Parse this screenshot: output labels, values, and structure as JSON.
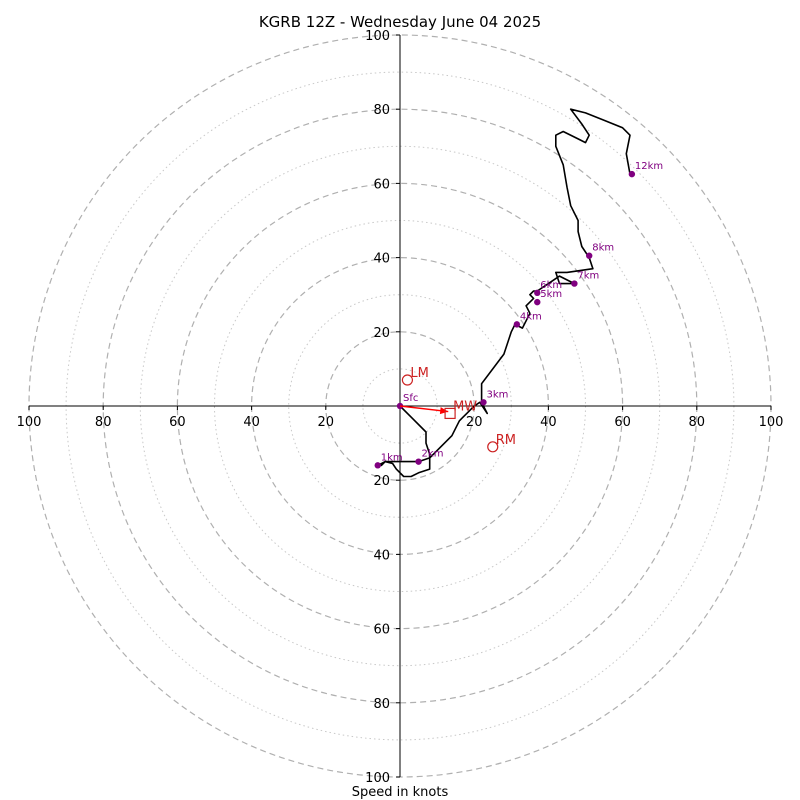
{
  "chart_data": {
    "type": "hodograph",
    "title": "KGRB 12Z - Wednesday June 04 2025",
    "xlabel": "Speed in knots",
    "range": [
      -100,
      100
    ],
    "major_rings": [
      20,
      40,
      60,
      80,
      100
    ],
    "minor_rings": [
      10,
      30,
      50,
      70,
      90
    ],
    "x_ticks": [
      {
        "value": -100,
        "label": "100"
      },
      {
        "value": -80,
        "label": "80"
      },
      {
        "value": -60,
        "label": "60"
      },
      {
        "value": -40,
        "label": "40"
      },
      {
        "value": -20,
        "label": "20"
      },
      {
        "value": 20,
        "label": "20"
      },
      {
        "value": 40,
        "label": "40"
      },
      {
        "value": 60,
        "label": "60"
      },
      {
        "value": 80,
        "label": "80"
      },
      {
        "value": 100,
        "label": "100"
      }
    ],
    "y_ticks": [
      {
        "value": 100,
        "label": "100"
      },
      {
        "value": 80,
        "label": "80"
      },
      {
        "value": 60,
        "label": "60"
      },
      {
        "value": 40,
        "label": "40"
      },
      {
        "value": 20,
        "label": "20"
      },
      {
        "value": -20,
        "label": "20"
      },
      {
        "value": -40,
        "label": "40"
      },
      {
        "value": -60,
        "label": "60"
      },
      {
        "value": -80,
        "label": "80"
      },
      {
        "value": -100,
        "label": "100"
      }
    ],
    "trace": [
      [
        0,
        0
      ],
      [
        3,
        -3
      ],
      [
        7,
        -7
      ],
      [
        7,
        -10
      ],
      [
        8,
        -13
      ],
      [
        8,
        -17
      ],
      [
        5,
        -18
      ],
      [
        3,
        -19
      ],
      [
        1,
        -19
      ],
      [
        -1,
        -17
      ],
      [
        -2,
        -15.5
      ],
      [
        -4,
        -15
      ],
      [
        -5,
        -16
      ],
      [
        -6,
        -16
      ],
      [
        -4,
        -15
      ],
      [
        0,
        -15
      ],
      [
        3,
        -15
      ],
      [
        5,
        -15
      ],
      [
        8,
        -14
      ],
      [
        11,
        -11
      ],
      [
        14,
        -8
      ],
      [
        15,
        -6
      ],
      [
        16,
        -4
      ],
      [
        17,
        -3
      ],
      [
        18,
        -2
      ],
      [
        19,
        -1
      ],
      [
        20,
        0
      ],
      [
        21.5,
        1
      ],
      [
        23.5,
        -2
      ],
      [
        22,
        1
      ],
      [
        22,
        6
      ],
      [
        28,
        14
      ],
      [
        30,
        20
      ],
      [
        31,
        22
      ],
      [
        33,
        21
      ],
      [
        35,
        25
      ],
      [
        34,
        27
      ],
      [
        36,
        29
      ],
      [
        35,
        30
      ],
      [
        36,
        31
      ],
      [
        37,
        31
      ],
      [
        40,
        33
      ],
      [
        43,
        35
      ],
      [
        47,
        33
      ],
      [
        43,
        33
      ],
      [
        42,
        36
      ],
      [
        45,
        36
      ],
      [
        52,
        37
      ],
      [
        51,
        40
      ],
      [
        49,
        43
      ],
      [
        48,
        47
      ],
      [
        48,
        50
      ],
      [
        46,
        54
      ],
      [
        45,
        59
      ],
      [
        44,
        65
      ],
      [
        42,
        70
      ],
      [
        42,
        73
      ],
      [
        44,
        74
      ],
      [
        48,
        72
      ],
      [
        50,
        71
      ],
      [
        51,
        73
      ],
      [
        49,
        76
      ],
      [
        46,
        80
      ],
      [
        50,
        79
      ],
      [
        55,
        77
      ],
      [
        60,
        75
      ],
      [
        62,
        73
      ],
      [
        61,
        68
      ],
      [
        62,
        62.5
      ]
    ],
    "height_markers": [
      {
        "label": "Sfc",
        "u": 0,
        "v": 0
      },
      {
        "label": "1km",
        "u": -6,
        "v": -16
      },
      {
        "label": "2km",
        "u": 5,
        "v": -15
      },
      {
        "label": "3km",
        "u": 22.5,
        "v": 1
      },
      {
        "label": "4km",
        "u": 31.5,
        "v": 22
      },
      {
        "label": "5km",
        "u": 37,
        "v": 28
      },
      {
        "label": "6km",
        "u": 37,
        "v": 30.5
      },
      {
        "label": "7km",
        "u": 47,
        "v": 33
      },
      {
        "label": "8km",
        "u": 51,
        "v": 40.5
      },
      {
        "label": "12km",
        "u": 62.5,
        "v": 62.5
      }
    ],
    "storm_motions": [
      {
        "label": "LM",
        "u": 2,
        "v": 7,
        "marker": "circle"
      },
      {
        "label": "RM",
        "u": 25,
        "v": -11,
        "marker": "circle"
      },
      {
        "label": "MW",
        "u": 13.5,
        "v": -2,
        "marker": "square"
      }
    ],
    "mean_wind_arrow": {
      "from": [
        0,
        0
      ],
      "to": [
        13,
        -1.5
      ]
    },
    "colors": {
      "trace": "#000000",
      "height_markers": "#800080",
      "storm_motion": "#cc2222",
      "arrow": "#ff0000",
      "major_ring": "#b0b0b0",
      "minor_ring": "#c8c8c8",
      "axis": "#000000"
    }
  }
}
